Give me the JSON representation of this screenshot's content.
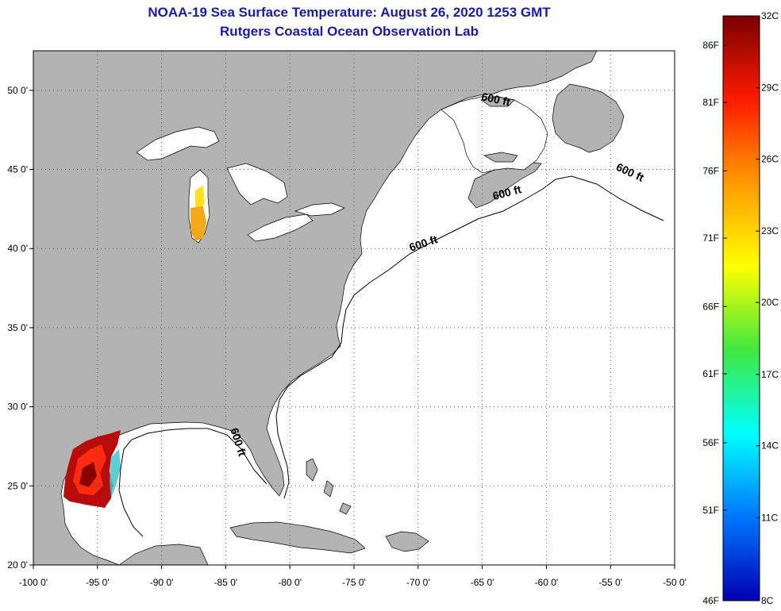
{
  "title": {
    "line1": "NOAA-19 Sea Surface Temperature:  August 26, 2020 1253 GMT",
    "line2": "Rutgers Coastal Ocean Observation Lab"
  },
  "map": {
    "lon_range": [
      -100,
      -50
    ],
    "lat_range": [
      20,
      52.5
    ],
    "x_ticks": [
      {
        "lon": -100,
        "label": "-100 0'"
      },
      {
        "lon": -95,
        "label": "-95 0'"
      },
      {
        "lon": -90,
        "label": "-90 0'"
      },
      {
        "lon": -85,
        "label": "-85 0'"
      },
      {
        "lon": -80,
        "label": "-80 0'"
      },
      {
        "lon": -75,
        "label": "-75 0'"
      },
      {
        "lon": -70,
        "label": "-70 0'"
      },
      {
        "lon": -65,
        "label": "-65 0'"
      },
      {
        "lon": -60,
        "label": "-60 0'"
      },
      {
        "lon": -55,
        "label": "-55 0'"
      },
      {
        "lon": -50,
        "label": "-50 0'"
      }
    ],
    "y_ticks": [
      {
        "lat": 20,
        "label": "20 0'"
      },
      {
        "lat": 25,
        "label": "25 0'"
      },
      {
        "lat": 30,
        "label": "30 0'"
      },
      {
        "lat": 35,
        "label": "35 0'"
      },
      {
        "lat": 40,
        "label": "40 0'"
      },
      {
        "lat": 45,
        "label": "45 0'"
      },
      {
        "lat": 50,
        "label": "50 0'"
      }
    ],
    "grid": true,
    "land_color": "#b3b3b3",
    "water_color": "#ffffff",
    "contour_label": "600 ft",
    "contour_labels": [
      {
        "lon": -64,
        "lat": 49.2,
        "rot": 12
      },
      {
        "lon": -53.6,
        "lat": 44.6,
        "rot": 25
      },
      {
        "lon": -63,
        "lat": 43.3,
        "rot": -15
      },
      {
        "lon": -69.5,
        "lat": 40.1,
        "rot": -18
      },
      {
        "lon": -84.3,
        "lat": 27.7,
        "rot": 72
      }
    ]
  },
  "colorbar": {
    "f_labels": [
      {
        "t": 0.05,
        "label": "86F"
      },
      {
        "t": 0.148,
        "label": "81F"
      },
      {
        "t": 0.265,
        "label": "76F"
      },
      {
        "t": 0.38,
        "label": "71F"
      },
      {
        "t": 0.497,
        "label": "66F"
      },
      {
        "t": 0.612,
        "label": "61F"
      },
      {
        "t": 0.73,
        "label": "56F"
      },
      {
        "t": 0.845,
        "label": "51F"
      },
      {
        "t": 1.0,
        "label": "46F"
      }
    ],
    "c_labels": [
      {
        "t": 0.0,
        "label": "32C"
      },
      {
        "t": 0.123,
        "label": "29C"
      },
      {
        "t": 0.245,
        "label": "26C"
      },
      {
        "t": 0.368,
        "label": "23C"
      },
      {
        "t": 0.49,
        "label": "20C"
      },
      {
        "t": 0.613,
        "label": "17C"
      },
      {
        "t": 0.735,
        "label": "14C"
      },
      {
        "t": 0.858,
        "label": "11C"
      },
      {
        "t": 1.0,
        "label": "8C"
      }
    ],
    "gradient": [
      "#7a0000",
      "#ff1a00",
      "#ff9a00",
      "#ffff00",
      "#40e840",
      "#00ffff",
      "#0077ff",
      "#0000b4"
    ]
  }
}
